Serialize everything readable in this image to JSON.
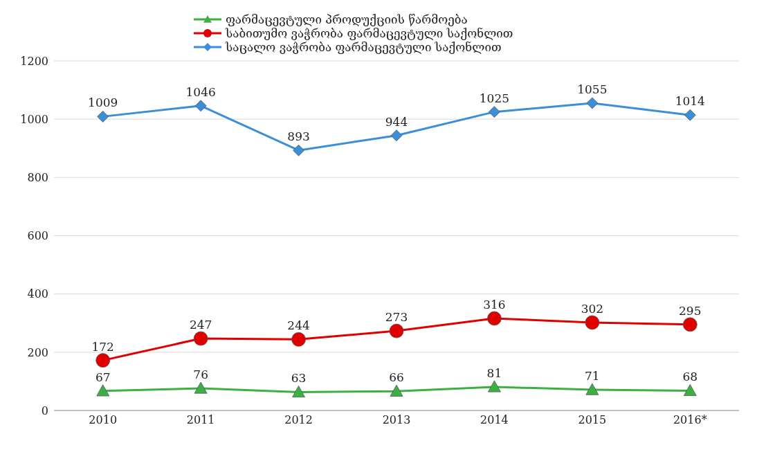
{
  "chart_data": {
    "type": "line",
    "categories": [
      "2010",
      "2011",
      "2012",
      "2013",
      "2014",
      "2015",
      "2016*"
    ],
    "series": [
      {
        "name": "ფარმაცევტული პროდუქციის წარმოება",
        "color": "#3cb043",
        "marker": "triangle",
        "values": [
          67,
          76,
          63,
          66,
          81,
          71,
          68
        ]
      },
      {
        "name": "საბითუმო ვაჭრობა ფარმაცევტული საქონლით",
        "color": "#e00000",
        "marker": "circle",
        "values": [
          172,
          247,
          244,
          273,
          316,
          302,
          295
        ]
      },
      {
        "name": "საცალო ვაჭრობა ფარმაცევტული საქონლით",
        "color": "#3b8fd9",
        "marker": "diamond",
        "values": [
          1009,
          1046,
          893,
          944,
          1025,
          1055,
          1014
        ]
      }
    ],
    "ylim": [
      0,
      1200
    ],
    "yticks": [
      0,
      200,
      400,
      600,
      800,
      1000,
      1200
    ],
    "grid": "y",
    "legend": "top",
    "data_labels": true
  }
}
